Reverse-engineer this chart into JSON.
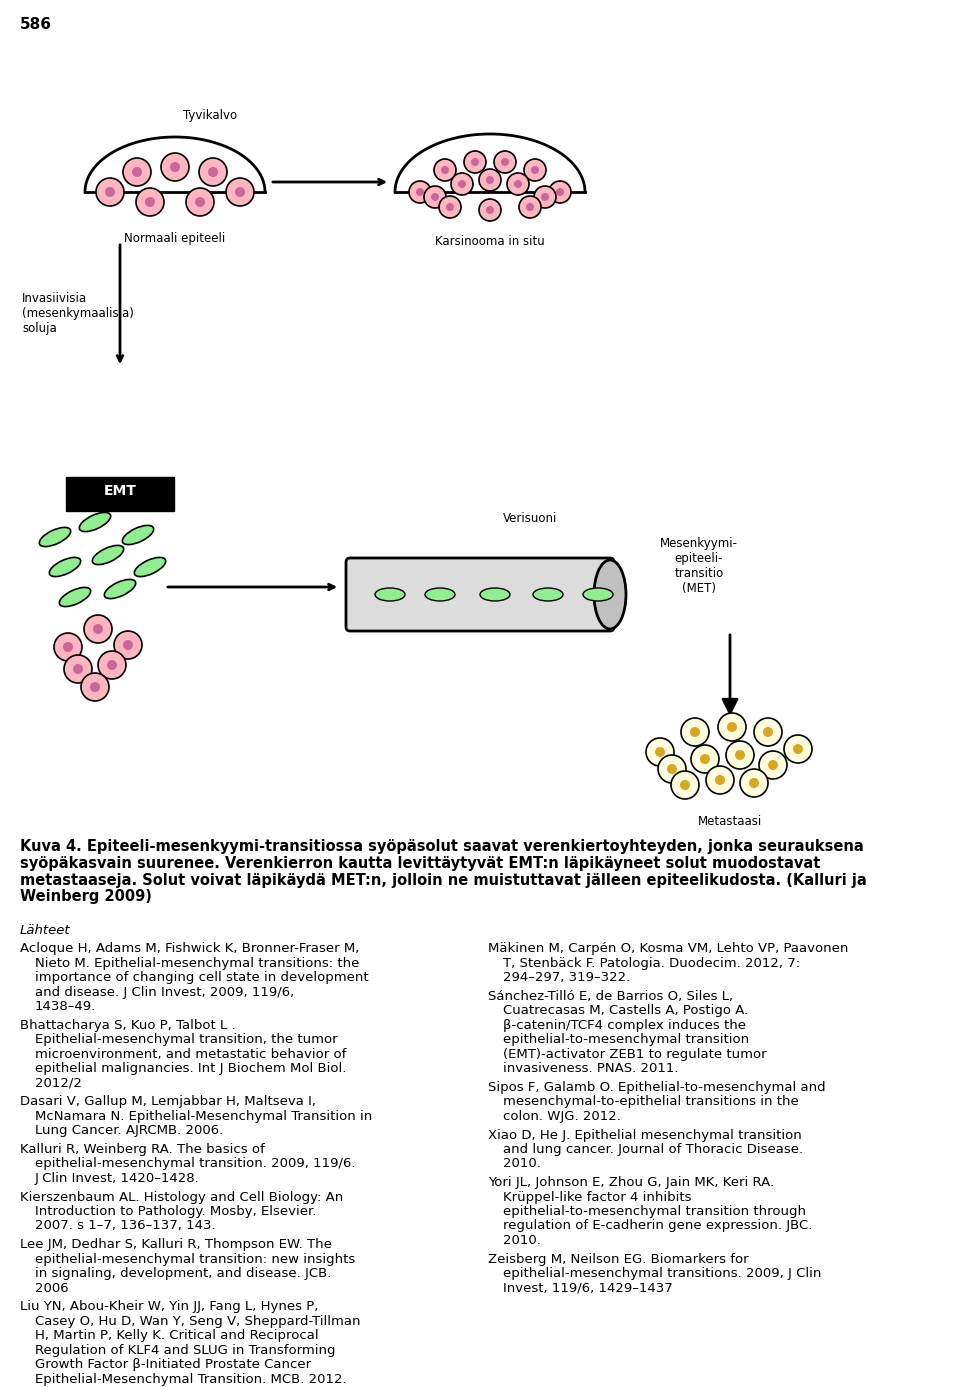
{
  "page_number": "586",
  "caption_bold": "Kuva 4. Epiteeli-mesenkyymi-transitiossa syöpäsolut saavat verenkiertoyhteyden, jonka seurauksena syöpäkasvain suurenee. Verenkierron kautta levittäytyvät EMT:n läpikäyneet solut muodostavat metastaaseja. Solut voivat läpikäydä MET:n, jolloin ne muistuttavat jälleen epiteelikudosta. (Kalluri ja Weinberg 2009)",
  "section_header": "Lähteet",
  "left_refs": [
    "Acloque H, Adams M, Fishwick K, Bronner-Fraser M, Nieto M. Epithelial-mesenchymal transitions: the importance of changing cell state in development and disease. J Clin Invest, 2009, 119/6, 1438–49.",
    "Bhattacharya S, Kuo P, Talbot L . Epithelial-mesenchymal transition, the tumor microenvironment, and metastatic behavior of epithelial malignancies. Int J Biochem Mol Biol. 2012/2",
    "Dasari V, Gallup M, Lemjabbar H, Maltseva I, McNamara N. Epithelial-Mesenchymal Transition in Lung Cancer. AJRCMB. 2006.",
    "Kalluri R, Weinberg RA. The basics of epithelial-mesenchymal transition. 2009, 119/6. J Clin Invest, 1420–1428.",
    "Kierszenbaum AL. Histology and Cell Biology: An Introduction to Pathology. Mosby, Elsevier. 2007. s 1–7, 136–137, 143.",
    "Lee JM, Dedhar S, Kalluri R, Thompson EW. The epithelial-mesenchymal transition: new insights in signaling, development, and disease. JCB. 2006",
    "Liu YN, Abou-Kheir W, Yin JJ, Fang L, Hynes P, Casey O, Hu D, Wan Y, Seng V, Sheppard-Tillman H, Martin P, Kelly K. Critical and Reciprocal Regulation of KLF4 and SLUG in Transforming Growth Factor β-Initiated Prostate Cancer Epithelial-Mesenchymal Transition. MCB. 2012."
  ],
  "right_refs": [
    "Mäkinen M, Carpén O, Kosma VM, Lehto VP, Paavonen T, Stenbäck F. Patologia. Duodecim. 2012, 7: 294–297, 319–322.",
    "Sánchez-Tilló E, de Barrios O, Siles L, Cuatrecasas M, Castells A, Postigo A. β-catenin/TCF4 complex induces the epithelial-to-mesenchymal transition (EMT)-activator ZEB1 to regulate tumor invasiveness. PNAS. 2011.",
    "Sipos F, Galamb O. Epithelial-to-mesenchymal and mesenchymal-to-epithelial transitions in the colon. WJG. 2012.",
    "Xiao D, He J. Epithelial mesenchymal transition and lung cancer. Journal of Thoracic Disease. 2010.",
    "Yori JL, Johnson E, Zhou G, Jain MK, Keri RA. Krüppel-like factor 4 inhibits epithelial-to-mesenchymal transition through regulation of E-cadherin gene expression. JBC. 2010.",
    "Zeisberg M, Neilson EG. Biomarkers for epithelial-mesenchymal transitions. 2009, J Clin Invest, 119/6, 1429–1437"
  ],
  "bg_color": "#ffffff",
  "text_color": "#000000",
  "font_size_body": 9.5,
  "font_size_caption": 10.5,
  "font_size_page_num": 11
}
